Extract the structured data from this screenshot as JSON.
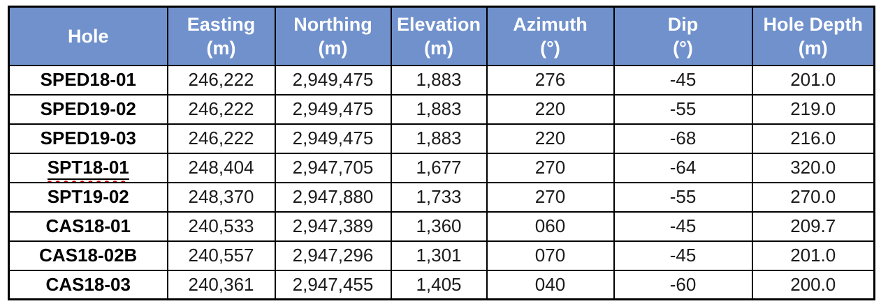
{
  "table": {
    "columns": [
      {
        "key": "hole",
        "label": "Hole",
        "unit": ""
      },
      {
        "key": "easting",
        "label": "Easting",
        "unit": "(m)"
      },
      {
        "key": "northing",
        "label": "Northing",
        "unit": "(m)"
      },
      {
        "key": "elevation",
        "label": "Elevation",
        "unit": "(m)"
      },
      {
        "key": "azimuth",
        "label": "Azimuth",
        "unit": "(°)"
      },
      {
        "key": "dip",
        "label": "Dip",
        "unit": "(°)"
      },
      {
        "key": "hole_depth",
        "label": "Hole Depth",
        "unit": "(m)"
      }
    ],
    "rows": [
      {
        "hole": "SPED18-01",
        "easting": "246,222",
        "northing": "2,949,475",
        "elevation": "1,883",
        "azimuth": "276",
        "dip": "-45",
        "hole_depth": "201.0",
        "spellcheck_marker": false
      },
      {
        "hole": "SPED19-02",
        "easting": "246,222",
        "northing": "2,949,475",
        "elevation": "1,883",
        "azimuth": "220",
        "dip": "-55",
        "hole_depth": "219.0",
        "spellcheck_marker": false
      },
      {
        "hole": "SPED19-03",
        "easting": "246,222",
        "northing": "2,949,475",
        "elevation": "1,883",
        "azimuth": "220",
        "dip": "-68",
        "hole_depth": "216.0",
        "spellcheck_marker": false
      },
      {
        "hole": "SPT18-01",
        "easting": "248,404",
        "northing": "2,947,705",
        "elevation": "1,677",
        "azimuth": "270",
        "dip": "-64",
        "hole_depth": "320.0",
        "spellcheck_marker": true
      },
      {
        "hole": "SPT19-02",
        "easting": "248,370",
        "northing": "2,947,880",
        "elevation": "1,733",
        "azimuth": "270",
        "dip": "-55",
        "hole_depth": "270.0",
        "spellcheck_marker": false
      },
      {
        "hole": "CAS18-01",
        "easting": "240,533",
        "northing": "2,947,389",
        "elevation": "1,360",
        "azimuth": "060",
        "dip": "-45",
        "hole_depth": "209.7",
        "spellcheck_marker": false
      },
      {
        "hole": "CAS18-02B",
        "easting": "240,557",
        "northing": "2,947,296",
        "elevation": "1,301",
        "azimuth": "070",
        "dip": "-45",
        "hole_depth": "201.0",
        "spellcheck_marker": false
      },
      {
        "hole": "CAS18-03",
        "easting": "240,361",
        "northing": "2,947,455",
        "elevation": "1,405",
        "azimuth": "040",
        "dip": "-60",
        "hole_depth": "200.0",
        "spellcheck_marker": false
      }
    ]
  },
  "colors": {
    "header_bg": "#7091CC",
    "header_text": "#FFFFFF",
    "grid": "#000000",
    "body_text": "#1C1C1C",
    "spellcheck": "#C00000"
  }
}
